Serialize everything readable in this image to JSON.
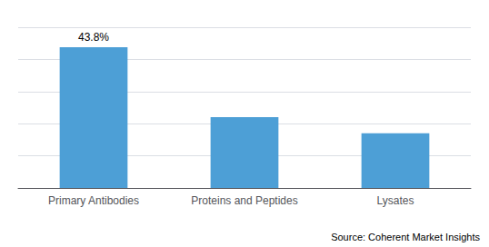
{
  "chart_data": {
    "type": "bar",
    "categories": [
      "Primary Antibodies",
      "Proteins and Peptides",
      "Lysates"
    ],
    "values": [
      43.8,
      22.0,
      17.0
    ],
    "value_labels": [
      "43.8%",
      null,
      null
    ],
    "data_labels": true,
    "color": "#4d9fd6",
    "ylim": [
      0,
      50
    ],
    "yticks": [
      0,
      10,
      20,
      30,
      40,
      50
    ],
    "grid": true,
    "tick_labels": "x",
    "annotations": [
      "Source: Coherent Market Insights"
    ]
  }
}
